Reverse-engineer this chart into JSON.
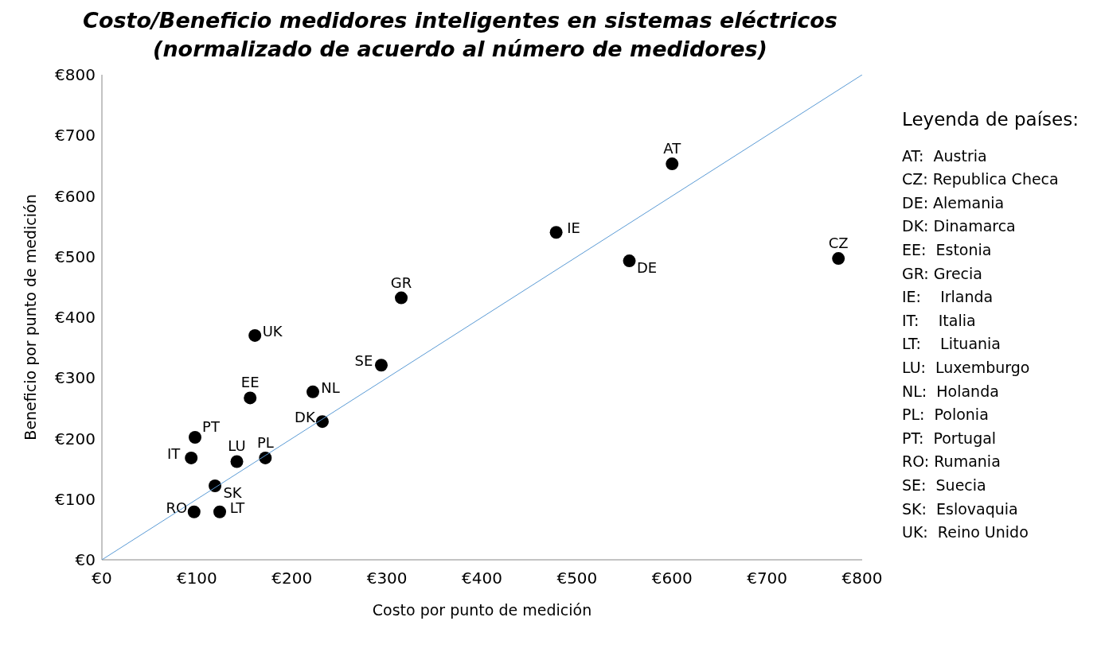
{
  "chart_data": {
    "type": "scatter",
    "title": "Costo/Beneficio medidores inteligentes en sistemas eléctricos\n(normalizado de acuerdo al número de medidores)",
    "xlabel": "Costo por punto de medición",
    "ylabel": "Beneficio por punto de medición",
    "x": [
      600,
      478,
      555,
      775,
      315,
      161,
      294,
      156,
      222,
      232,
      98,
      94,
      142,
      172,
      119,
      97,
      124
    ],
    "series": [
      {
        "color": "#000000",
        "marker": "circle",
        "values": [
          653,
          540,
          493,
          497,
          432,
          370,
          321,
          267,
          277,
          228,
          202,
          168,
          162,
          168,
          122,
          79,
          79
        ]
      },
      {
        "type": "line",
        "marker": "none",
        "color": "#5b9bd5",
        "x": [
          0,
          800
        ],
        "values": [
          0,
          800
        ]
      }
    ],
    "xlim": [
      0,
      800
    ],
    "ylim": [
      0,
      800
    ],
    "xticks": [
      {
        "value": 0,
        "label": "€0"
      },
      {
        "value": 100,
        "label": "€100"
      },
      {
        "value": 200,
        "label": "€200"
      },
      {
        "value": 300,
        "label": "€300"
      },
      {
        "value": 400,
        "label": "€400"
      },
      {
        "value": 500,
        "label": "€500"
      },
      {
        "value": 600,
        "label": "€600"
      },
      {
        "value": 700,
        "label": "€700"
      },
      {
        "value": 800,
        "label": "€800"
      }
    ],
    "yticks": [
      {
        "value": 0,
        "label": "€0"
      },
      {
        "value": 100,
        "label": "€100"
      },
      {
        "value": 200,
        "label": "€200"
      },
      {
        "value": 300,
        "label": "€300"
      },
      {
        "value": 400,
        "label": "€400"
      },
      {
        "value": 500,
        "label": "€500"
      },
      {
        "value": 600,
        "label": "€600"
      },
      {
        "value": 700,
        "label": "€700"
      },
      {
        "value": 800,
        "label": "€800"
      }
    ],
    "annotations": [
      {
        "text": "AT",
        "x": 600,
        "y": 653
      },
      {
        "text": "IE",
        "x": 478,
        "y": 540
      },
      {
        "text": "DE",
        "x": 555,
        "y": 493
      },
      {
        "text": "CZ",
        "x": 775,
        "y": 497
      },
      {
        "text": "GR",
        "x": 315,
        "y": 432
      },
      {
        "text": "UK",
        "x": 161,
        "y": 370
      },
      {
        "text": "SE",
        "x": 294,
        "y": 321
      },
      {
        "text": "EE",
        "x": 156,
        "y": 267
      },
      {
        "text": "NL",
        "x": 222,
        "y": 277
      },
      {
        "text": "DK",
        "x": 232,
        "y": 228
      },
      {
        "text": "PT",
        "x": 98,
        "y": 202
      },
      {
        "text": "IT",
        "x": 94,
        "y": 168
      },
      {
        "text": "LU",
        "x": 142,
        "y": 162
      },
      {
        "text": "PL",
        "x": 172,
        "y": 168
      },
      {
        "text": "SK",
        "x": 119,
        "y": 122
      },
      {
        "text": "RO",
        "x": 97,
        "y": 79
      },
      {
        "text": "LT",
        "x": 124,
        "y": 79
      },
      "Leyenda de países:",
      "AT:  Austria",
      "CZ: Republica Checa",
      "DE: Alemania",
      "DK: Dinamarca",
      "EE:  Estonia",
      "GR: Grecia",
      "IE:    Irlanda",
      "IT:    Italia",
      "LT:    Lituania",
      "LU:  Luxemburgo",
      "NL:  Holanda",
      "PL:  Polonia",
      "PT:  Portugal",
      "RO: Rumania",
      "SE:  Suecia",
      "SK:  Eslovaquia",
      "UK:  Reino Unido"
    ]
  }
}
